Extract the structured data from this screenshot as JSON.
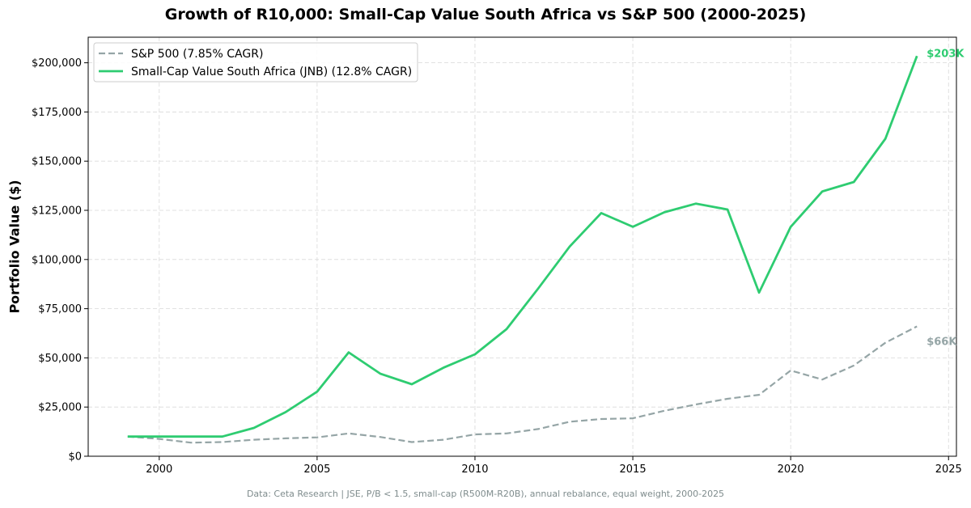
{
  "chart_data": {
    "type": "line",
    "title": "Growth of R10,000: Small-Cap Value South Africa vs S&P 500 (2000-2025)",
    "xlabel": "",
    "ylabel": "Portfolio Value ($)",
    "xlim": [
      1997.75,
      2025.25
    ],
    "ylim": [
      0,
      213000
    ],
    "x_ticks": [
      2000,
      2005,
      2010,
      2015,
      2020,
      2025
    ],
    "y_ticks": [
      0,
      25000,
      50000,
      75000,
      100000,
      125000,
      150000,
      175000,
      200000
    ],
    "y_tick_labels": [
      "$0",
      "$25,000",
      "$50,000",
      "$75,000",
      "$100,000",
      "$125,000",
      "$150,000",
      "$175,000",
      "$200,000"
    ],
    "grid": true,
    "legend_position": "top-left",
    "x": [
      1999,
      2000,
      2001,
      2002,
      2003,
      2004,
      2005,
      2006,
      2007,
      2008,
      2009,
      2010,
      2011,
      2012,
      2013,
      2014,
      2015,
      2016,
      2017,
      2018,
      2019,
      2020,
      2021,
      2022,
      2023,
      2024
    ],
    "series": [
      {
        "name": "S&P 500 (7.85% CAGR)",
        "color": "#95a5a6",
        "dashed": true,
        "values": [
          10000,
          8800,
          6900,
          7200,
          8400,
          9100,
          9600,
          11600,
          9800,
          7200,
          8400,
          11100,
          11600,
          13800,
          17500,
          18900,
          19300,
          23100,
          26300,
          29200,
          31200,
          43600,
          39000,
          46100,
          57700,
          66000
        ],
        "end_label": "$66K"
      },
      {
        "name": "Small-Cap Value South Africa (JNB) (12.8% CAGR)",
        "color": "#2ecc71",
        "dashed": false,
        "values": [
          10000,
          10000,
          10000,
          10000,
          14400,
          22400,
          32800,
          52800,
          42000,
          36600,
          45000,
          51800,
          64600,
          85200,
          106600,
          123600,
          116600,
          124000,
          128400,
          125400,
          83200,
          116600,
          134600,
          139400,
          161400,
          203400
        ],
        "end_label": "$203K"
      }
    ]
  },
  "footer": "Data: Ceta Research | JSE, P/B < 1.5, small-cap (R500M-R20B), annual rebalance, equal weight, 2000-2025"
}
